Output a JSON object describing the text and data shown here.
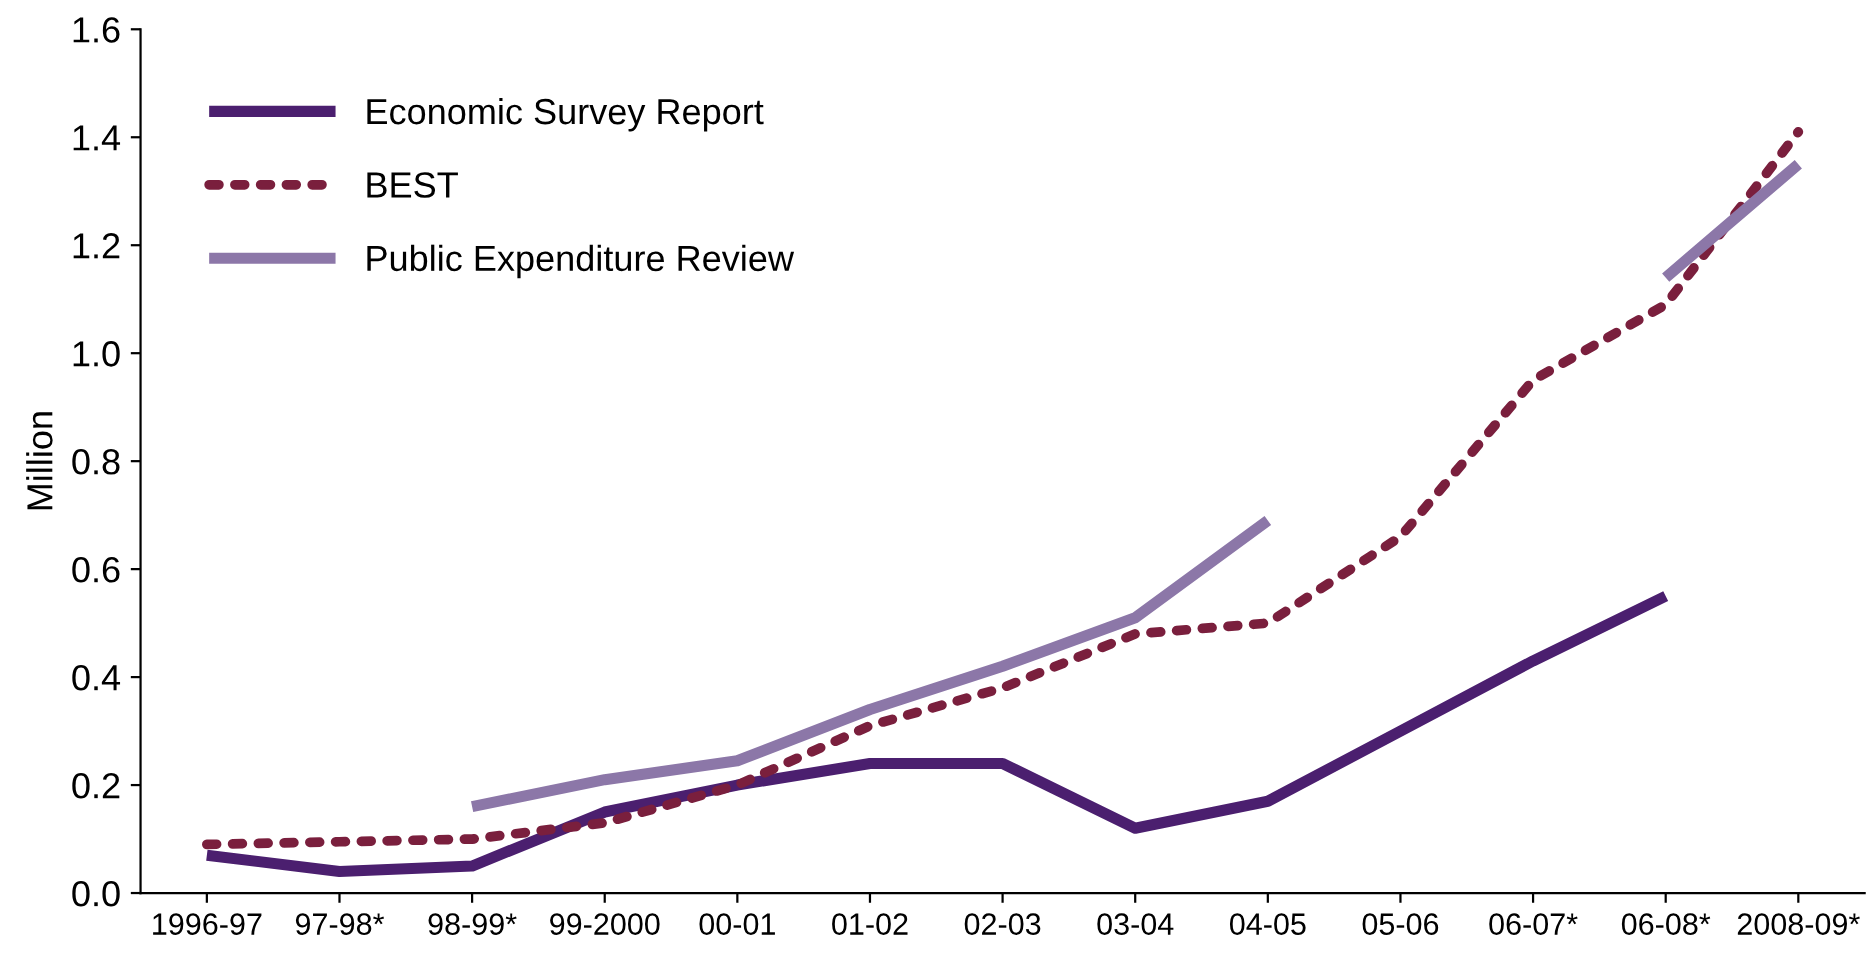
{
  "chart_data": {
    "type": "line",
    "ylabel": "Million",
    "categories": [
      "1996-97",
      "97-98*",
      "98-99*",
      "99-2000",
      "00-01",
      "01-02",
      "02-03",
      "03-04",
      "04-05",
      "05-06",
      "06-07*",
      "06-08*",
      "2008-09*"
    ],
    "series": [
      {
        "name": "Economic Survey Report",
        "color": "#4b1f6f",
        "line_style": "solid",
        "values": [
          0.07,
          0.04,
          0.05,
          0.15,
          0.2,
          0.24,
          0.24,
          0.12,
          0.17,
          0.3,
          0.43,
          0.55,
          null
        ]
      },
      {
        "name": "BEST",
        "color": "#7a1f3d",
        "line_style": "dotted",
        "values": [
          0.09,
          0.095,
          0.1,
          0.13,
          0.2,
          0.31,
          0.38,
          0.48,
          0.5,
          0.66,
          0.95,
          1.09,
          1.41
        ]
      },
      {
        "name": "Public Expenditure Review",
        "color": "#8c77a8",
        "line_style": "solid",
        "values": [
          null,
          null,
          0.16,
          0.21,
          0.245,
          0.34,
          0.42,
          0.51,
          0.69,
          null,
          null,
          1.14,
          1.35
        ]
      }
    ],
    "ylim": [
      0,
      1.6
    ],
    "yticks": [
      {
        "value": 0,
        "label": "0.0"
      },
      {
        "value": 0.2,
        "label": "0.2"
      },
      {
        "value": 0.4,
        "label": "0.4"
      },
      {
        "value": 0.6,
        "label": "0.6"
      },
      {
        "value": 0.8,
        "label": "0.8"
      },
      {
        "value": 1.0,
        "label": "1.0"
      },
      {
        "value": 1.2,
        "label": "1.2"
      },
      {
        "value": 1.4,
        "label": "1.4"
      },
      {
        "value": 1.6,
        "label": "1.6"
      }
    ],
    "grid": false,
    "legend": "top left",
    "marker": "none"
  }
}
